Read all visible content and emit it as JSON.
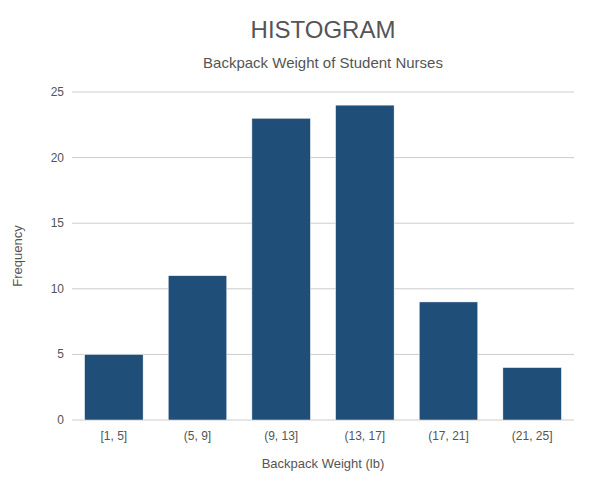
{
  "chart_data": {
    "type": "bar",
    "title": "HISTOGRAM",
    "subtitle": "Backpack Weight of Student Nurses",
    "xlabel": "Backpack Weight (lb)",
    "ylabel": "Frequency",
    "categories": [
      "[1, 5]",
      "(5, 9]",
      "(9, 13]",
      "(13, 17]",
      "(17, 21]",
      "(21, 25]"
    ],
    "values": [
      5,
      11,
      23,
      24,
      9,
      4
    ],
    "color": "#1f4e79",
    "ylim": [
      0,
      25
    ],
    "yticks": [
      0,
      5,
      10,
      15,
      20,
      25
    ],
    "grid": true
  }
}
